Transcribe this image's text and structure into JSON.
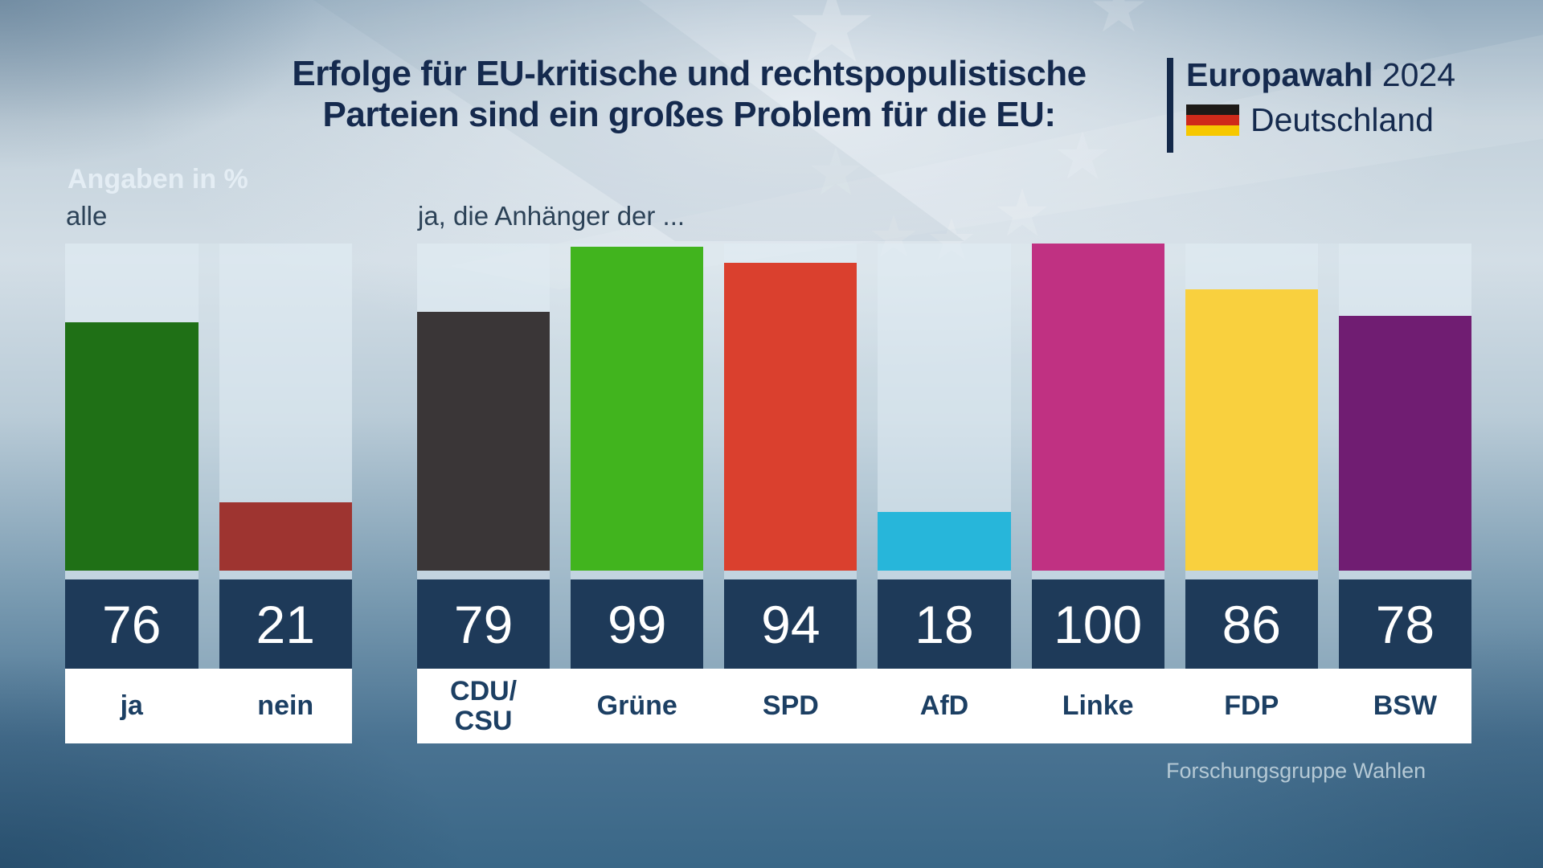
{
  "header": {
    "title_line1": "Erfolge für EU-kritische und rechtspopulistische",
    "title_line2": "Parteien sind ein großes Problem für die EU:",
    "brand": {
      "name": "Europawahl",
      "year": "2024",
      "country": "Deutschland"
    }
  },
  "meta": {
    "unit_note": "Angaben in %",
    "source": "Forschungsgruppe Wahlen"
  },
  "chart_data": {
    "type": "bar",
    "unit": "%",
    "ylim": [
      0,
      100
    ],
    "grid": false,
    "legend": false,
    "groups": [
      {
        "label": "alle",
        "bars": [
          {
            "category": "ja",
            "value": 76,
            "color": "#1f7016"
          },
          {
            "category": "nein",
            "value": 21,
            "color": "#9e3430"
          }
        ]
      },
      {
        "label": "ja, die Anhänger der ...",
        "bars": [
          {
            "category": "CDU/CSU",
            "value": 79,
            "color": "#3a3637"
          },
          {
            "category": "Grüne",
            "value": 99,
            "color": "#41b41e"
          },
          {
            "category": "SPD",
            "value": 94,
            "color": "#da402e"
          },
          {
            "category": "AfD",
            "value": 18,
            "color": "#27b6da"
          },
          {
            "category": "Linke",
            "value": 100,
            "color": "#c03182"
          },
          {
            "category": "FDP",
            "value": 86,
            "color": "#f9d03e"
          },
          {
            "category": "BSW",
            "value": 78,
            "color": "#701d72"
          }
        ]
      }
    ]
  },
  "colors": {
    "title_text": "#152a4e",
    "divider": "#14294a",
    "unit_note_text": "#e4edf4",
    "group_label_text": "#2c4257",
    "value_band_bg": "#1e3a59",
    "value_text": "#ffffff",
    "label_band_bg": "#ffffff",
    "label_text": "#1c3f63",
    "flag_black": "#1d1a17",
    "flag_red": "#cf2a1a",
    "flag_gold": "#f6c800"
  }
}
